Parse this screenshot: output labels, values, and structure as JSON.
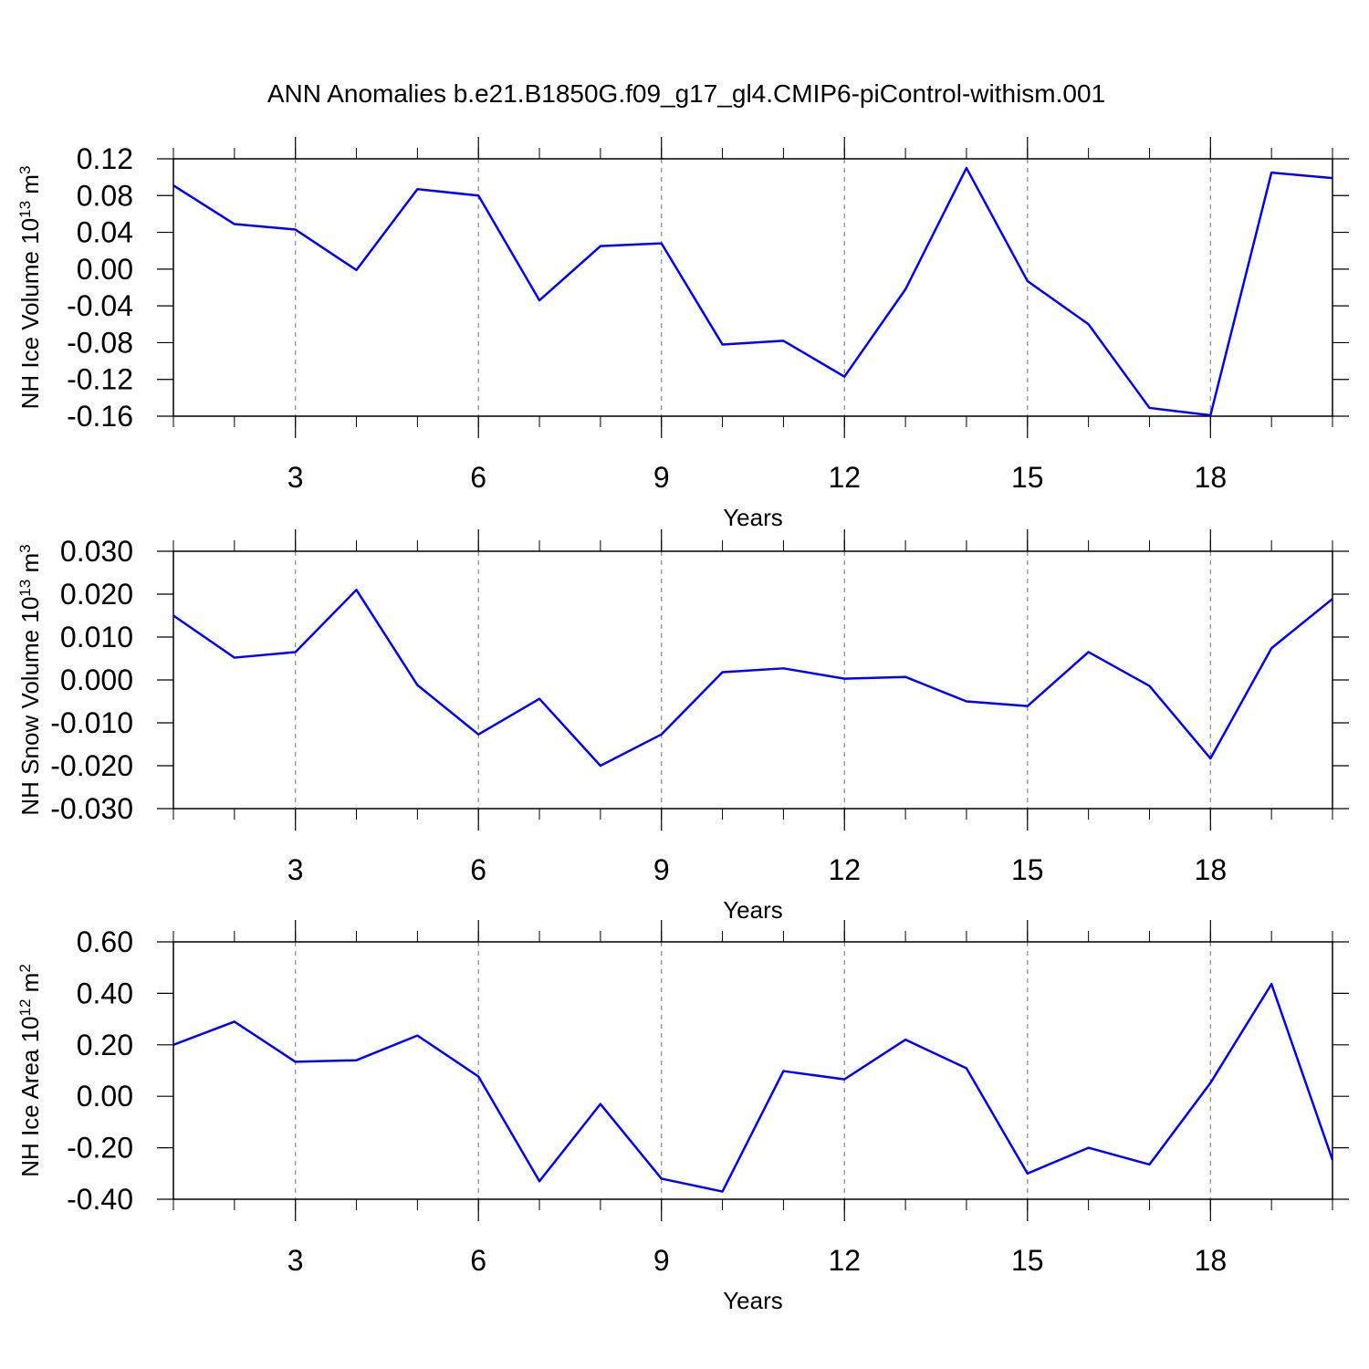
{
  "title": "ANN Anomalies b.e21.B1850G.f09_g17_gl4.CMIP6-piControl-withism.001",
  "chart_data": [
    {
      "type": "line",
      "ylabel": {
        "text": "NH Ice Volume 10",
        "scale_exp": "13",
        "unit": " m",
        "unit_exp": "3"
      },
      "xlabel": "Years",
      "x": [
        1,
        2,
        3,
        4,
        5,
        6,
        7,
        8,
        9,
        10,
        11,
        12,
        13,
        14,
        15,
        16,
        17,
        18,
        19,
        20
      ],
      "xlim": [
        1,
        20
      ],
      "xticks": [
        3,
        6,
        9,
        12,
        15,
        18
      ],
      "ylim": [
        -0.16,
        0.12
      ],
      "yticks": [
        -0.16,
        -0.12,
        -0.08,
        -0.04,
        {
          "value": 0,
          "label": "0.00"
        },
        0.04,
        0.08,
        0.12
      ],
      "grid": "x",
      "series": [
        {
          "color": "#0000ff",
          "values": [
            0.091,
            0.049,
            0.043,
            -0.001,
            0.087,
            0.08,
            -0.034,
            0.025,
            0.028,
            -0.082,
            -0.078,
            -0.117,
            -0.022,
            0.11,
            -0.013,
            -0.06,
            -0.151,
            -0.159,
            0.105,
            0.099
          ]
        }
      ]
    },
    {
      "type": "line",
      "ylabel": {
        "text": "NH Snow Volume 10",
        "scale_exp": "13",
        "unit": " m",
        "unit_exp": "3"
      },
      "xlabel": "Years",
      "x": [
        1,
        2,
        3,
        4,
        5,
        6,
        7,
        8,
        9,
        10,
        11,
        12,
        13,
        14,
        15,
        16,
        17,
        18,
        19,
        20
      ],
      "xlim": [
        1,
        20
      ],
      "xticks": [
        3,
        6,
        9,
        12,
        15,
        18
      ],
      "ylim": [
        -0.03,
        0.03
      ],
      "yticks": [
        {
          "value": -0.03,
          "label": "-0.030"
        },
        {
          "value": -0.02,
          "label": "-0.020"
        },
        {
          "value": -0.01,
          "label": "-0.010"
        },
        {
          "value": 0,
          "label": "0.000"
        },
        {
          "value": 0.01,
          "label": "0.010"
        },
        {
          "value": 0.02,
          "label": "0.020"
        },
        {
          "value": 0.03,
          "label": "0.030"
        }
      ],
      "grid": "x",
      "series": [
        {
          "color": "#0000ff",
          "values": [
            0.015,
            0.0052,
            0.0065,
            0.021,
            -0.0012,
            -0.0127,
            -0.0044,
            -0.02,
            -0.0127,
            0.0018,
            0.0027,
            0.0003,
            0.0007,
            -0.005,
            -0.0061,
            0.0065,
            -0.0014,
            -0.0183,
            0.0074,
            0.0189
          ]
        }
      ]
    },
    {
      "type": "line",
      "ylabel": {
        "text": "NH Ice Area 10",
        "scale_exp": "12",
        "unit": " m",
        "unit_exp": "2"
      },
      "xlabel": "Years",
      "x": [
        1,
        2,
        3,
        4,
        5,
        6,
        7,
        8,
        9,
        10,
        11,
        12,
        13,
        14,
        15,
        16,
        17,
        18,
        19,
        20
      ],
      "xlim": [
        1,
        20
      ],
      "xticks": [
        3,
        6,
        9,
        12,
        15,
        18
      ],
      "ylim": [
        -0.4,
        0.6
      ],
      "yticks": [
        {
          "value": -0.4,
          "label": "-0.40"
        },
        {
          "value": -0.2,
          "label": "-0.20"
        },
        {
          "value": 0,
          "label": "0.00"
        },
        {
          "value": 0.2,
          "label": "0.20"
        },
        {
          "value": 0.4,
          "label": "0.40"
        },
        {
          "value": 0.6,
          "label": "0.60"
        }
      ],
      "grid": "x",
      "series": [
        {
          "color": "#0000ff",
          "values": [
            0.2,
            0.29,
            0.134,
            0.14,
            0.236,
            0.077,
            -0.33,
            -0.03,
            -0.32,
            -0.37,
            0.098,
            0.066,
            0.22,
            0.109,
            -0.3,
            -0.2,
            -0.265,
            0.052,
            0.436,
            -0.247
          ]
        }
      ]
    }
  ]
}
